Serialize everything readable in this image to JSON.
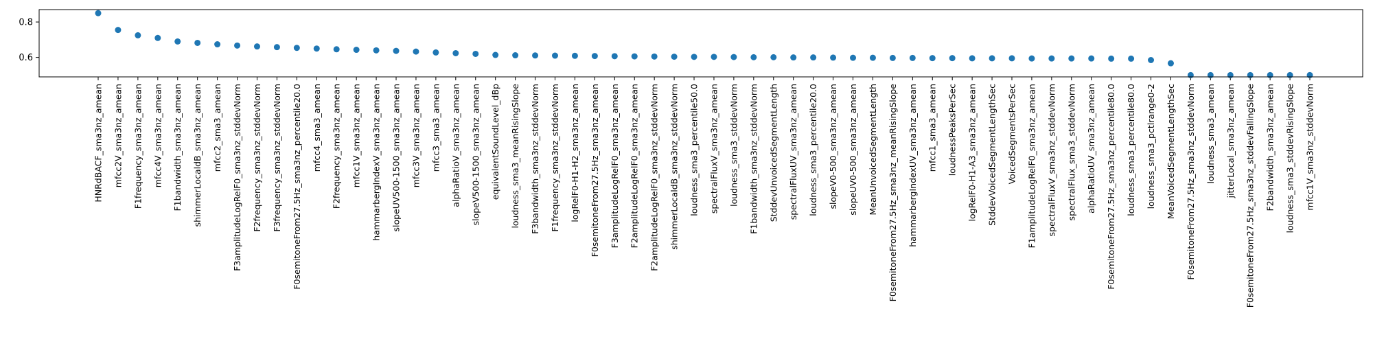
{
  "chart_data": {
    "type": "scatter",
    "title": "",
    "xlabel": "",
    "ylabel": "",
    "marker_color": "#1f77b4",
    "ylim": [
      0.49,
      0.87
    ],
    "yticks": [
      0.6,
      0.8
    ],
    "ytick_labels": [
      "0.6",
      "0.8"
    ],
    "grid": false,
    "legend": "none",
    "categories": [
      "HNRdBACF_sma3nz_amean",
      "mfcc2V_sma3nz_amean",
      "F1frequency_sma3nz_amean",
      "mfcc4V_sma3nz_amean",
      "F1bandwidth_sma3nz_amean",
      "shimmerLocaldB_sma3nz_amean",
      "mfcc2_sma3_amean",
      "F3amplitudeLogRelF0_sma3nz_stddevNorm",
      "F2frequency_sma3nz_stddevNorm",
      "F3frequency_sma3nz_stddevNorm",
      "F0semitoneFrom27.5Hz_sma3nz_percentile20.0",
      "mfcc4_sma3_amean",
      "F2frequency_sma3nz_amean",
      "mfcc1V_sma3nz_amean",
      "hammarbergIndexV_sma3nz_amean",
      "slopeUV500-1500_sma3nz_amean",
      "mfcc3V_sma3nz_amean",
      "mfcc3_sma3_amean",
      "alphaRatioV_sma3nz_amean",
      "slopeV500-1500_sma3nz_amean",
      "equivalentSoundLevel_dBp",
      "loudness_sma3_meanRisingSlope",
      "F3bandwidth_sma3nz_stddevNorm",
      "F1frequency_sma3nz_stddevNorm",
      "logRelF0-H1-H2_sma3nz_amean",
      "F0semitoneFrom27.5Hz_sma3nz_amean",
      "F3amplitudeLogRelF0_sma3nz_amean",
      "F2amplitudeLogRelF0_sma3nz_amean",
      "F2amplitudeLogRelF0_sma3nz_stddevNorm",
      "shimmerLocaldB_sma3nz_stddevNorm",
      "loudness_sma3_percentile50.0",
      "spectralFluxV_sma3nz_amean",
      "loudness_sma3_stddevNorm",
      "F1bandwidth_sma3nz_stddevNorm",
      "StddevUnvoicedSegmentLength",
      "spectralFluxUV_sma3nz_amean",
      "loudness_sma3_percentile20.0",
      "slopeV0-500_sma3nz_amean",
      "slopeUV0-500_sma3nz_amean",
      "MeanUnvoicedSegmentLength",
      "F0semitoneFrom27.5Hz_sma3nz_meanRisingSlope",
      "hammarbergIndexUV_sma3nz_amean",
      "mfcc1_sma3_amean",
      "loudnessPeaksPerSec",
      "logRelF0-H1-A3_sma3nz_amean",
      "StddevVoicedSegmentLengthSec",
      "VoicedSegmentsPerSec",
      "F1amplitudeLogRelF0_sma3nz_amean",
      "spectralFluxV_sma3nz_stddevNorm",
      "spectralFlux_sma3_stddevNorm",
      "alphaRatioUV_sma3nz_amean",
      "F0semitoneFrom27.5Hz_sma3nz_percentile80.0",
      "loudness_sma3_percentile80.0",
      "loudness_sma3_pctlrange0-2",
      "MeanVoicedSegmentLengthSec",
      "F0semitoneFrom27.5Hz_sma3nz_stddevNorm",
      "loudness_sma3_amean",
      "jitterLocal_sma3nz_amean",
      "F0semitoneFrom27.5Hz_sma3nz_stddevFallingSlope",
      "F2bandwidth_sma3nz_amean",
      "loudness_sma3_stddevRisingSlope",
      "mfcc1V_sma3nz_stddevNorm"
    ],
    "values": [
      0.85,
      0.755,
      0.725,
      0.71,
      0.69,
      0.682,
      0.674,
      0.667,
      0.662,
      0.658,
      0.654,
      0.65,
      0.646,
      0.643,
      0.64,
      0.637,
      0.633,
      0.628,
      0.624,
      0.62,
      0.614,
      0.612,
      0.611,
      0.61,
      0.609,
      0.608,
      0.607,
      0.606,
      0.605,
      0.604,
      0.603,
      0.603,
      0.602,
      0.601,
      0.601,
      0.6,
      0.6,
      0.599,
      0.598,
      0.598,
      0.597,
      0.597,
      0.596,
      0.596,
      0.595,
      0.595,
      0.595,
      0.594,
      0.594,
      0.594,
      0.594,
      0.593,
      0.593,
      0.585,
      0.567,
      0.5,
      0.5,
      0.5,
      0.5,
      0.5,
      0.5,
      0.5
    ]
  }
}
